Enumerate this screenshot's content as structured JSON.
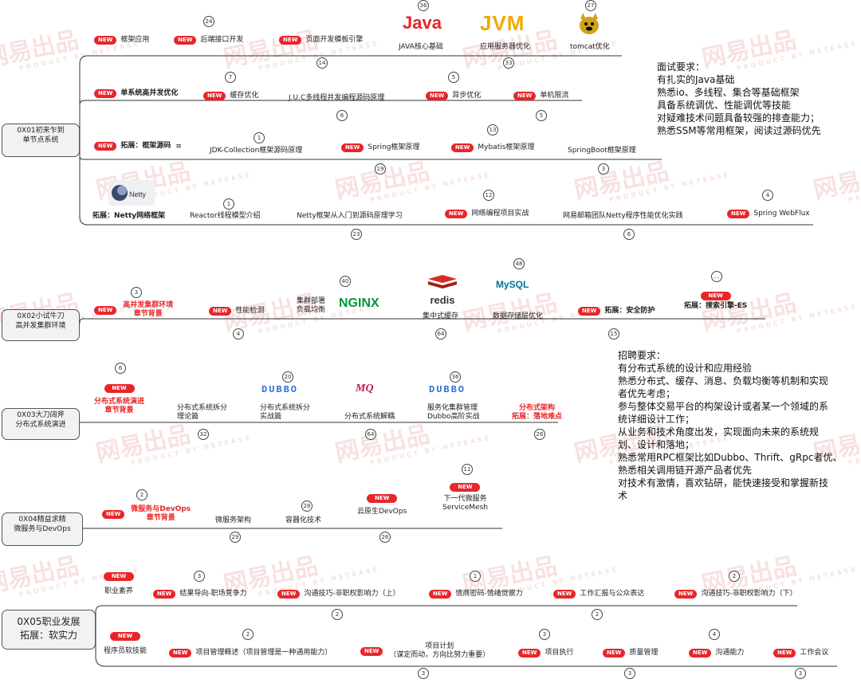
{
  "new_label": "NEW",
  "watermark": {
    "cn": "网易出品",
    "en": "PRODUCT BY NETEASE"
  },
  "logos": {
    "java": "Java",
    "jvm": "JVM",
    "redis": "redis",
    "nginx": "NGINX",
    "mysql": "MySQL",
    "mq": "MQ",
    "dubbo": "DUBBO",
    "netty": "Netty"
  },
  "roots": {
    "r1": [
      "0X01初来乍到",
      "单节点系统"
    ],
    "r2": [
      "0X02小试牛刀",
      "高并发集群环境"
    ],
    "r3": [
      "0X03大刀阔斧",
      "分布式系统演进"
    ],
    "r4": [
      "0X04精益求精",
      "微服务与DevOps"
    ],
    "r5": [
      "0X05职业发展",
      "拓展：软实力"
    ]
  },
  "items": {
    "kjyy": "框架应用",
    "hdjk": "后端接口开发",
    "ymkf": "页面开发模板引擎",
    "javahx": "JAVA核心基础",
    "jvmyh": "应用服务器优化",
    "tomcat": "tomcat优化",
    "dxtbf": "单系统高并发优化",
    "hcyh": "缓存优化",
    "juc": "J.U.C多线程并发编程源码原理",
    "ybyh": "异步优化",
    "djxl": "单机限流",
    "tzkj": "拓展：框架源码",
    "jdk": "JDK-Collection框架源码原理",
    "spring": "Spring框架原理",
    "mybatis": "Mybatis框架原理",
    "springboot": "SpringBoot框架原理",
    "nettykj": "拓展：Netty网络框架",
    "reactor": "Reactor线程模型介绍",
    "nettyrm": "Netty框架从入门到源码原理学习",
    "wlbc": "网络编程项目实战",
    "wyyx": "网易邮箱团队Netty程序性能优化实践",
    "webflux": "Spring WebFlux",
    "gbfjq": [
      "高并发集群环境",
      "章节背景"
    ],
    "xnjc": "性能检测",
    "jqbs": [
      "集群部署",
      "负载均衡"
    ],
    "jzshc": "集中式缓存",
    "sjcc": "数据存储层优化",
    "aqfh": "拓展：安全防护",
    "ssyq": "拓展：搜索引擎-ES",
    "fbsyj": [
      "分布式系统演进",
      "章节背景"
    ],
    "fbscf": [
      "分布式系统拆分",
      "理论篇"
    ],
    "fbscfsz": [
      "分布式系统拆分",
      "实战篇"
    ],
    "fbsjo": "分布式系统解耦",
    "fwhjq": [
      "服务化集群管理",
      "Dubbo高阶实战"
    ],
    "fbsjg": [
      "分布式架构",
      "拓展：落地难点"
    ],
    "wfwdevops": [
      "微服务与DevOps",
      "章节背景"
    ],
    "wfwjg": "微服务架构",
    "rqhjs": "容器化技术",
    "yysdevops": "云原生DevOps",
    "xydwfw": [
      "下一代微服务",
      "ServiceMesh"
    ],
    "zysy": "职业素养",
    "jgdx": "结果导向-职场竞争力",
    "gtjq1": "沟通技巧-非职权影响力（上）",
    "qsmm": "情商密码-情绪觉察力",
    "gzhb": "工作汇报与公众表达",
    "gtjq2": "沟通技巧-非职权影响力（下）",
    "cxyrjn": "程序员软技能",
    "xmgl": "项目管理概述（项目管理是一种通用能力）",
    "xmjh": [
      "项目计划",
      "（谋定而动，方向比努力重要）"
    ],
    "xmzx": "项目执行",
    "zlgl": "质量管理",
    "gtnl": "沟通能力",
    "gzhy": "工作会议"
  },
  "badges": [
    "24",
    "36",
    "27",
    "14",
    "33",
    "7",
    "5",
    "6",
    "5",
    "1",
    "13",
    "19",
    "3",
    "1",
    "12",
    "4",
    "23",
    "6",
    "3",
    "40",
    "48",
    "…",
    "4",
    "64",
    "15",
    "6",
    "20",
    "36",
    "32",
    "64",
    "26",
    "11",
    "2",
    "28",
    "29",
    "26",
    "3",
    "1",
    "2",
    "2",
    "2",
    "2",
    "3",
    "4",
    "3",
    "3",
    "3"
  ],
  "notes": {
    "interview": [
      "面试要求：",
      "有扎实的Java基础",
      "熟悉io、多线程、集合等基础框架",
      "具备系统调优、性能调优等技能",
      "对疑难技术问题具备较强的排查能力；",
      "熟悉SSM等常用框架，阅读过源码优先"
    ],
    "recruit": [
      "招聘要求：",
      "有分布式系统的设计和应用经验",
      "熟悉分布式、缓存、消息、负载均衡等机制和实现",
      "者优先考虑；",
      "参与整体交易平台的构架设计或者某一个领域的系",
      "统详细设计工作；",
      "从业务和技术角度出发，实现面向未来的系统规",
      "划、设计和落地；",
      "熟悉常用RPC框架比如Dubbo、Thrift、gRpc者优、",
      "熟悉相关调用链开源产品者优先",
      "对技术有激情，喜欢钻研，能快速接受和掌握新技",
      "术"
    ]
  },
  "colors": {
    "accent": "#e8262a",
    "line": "#333333",
    "watermark": "#f3caca"
  }
}
